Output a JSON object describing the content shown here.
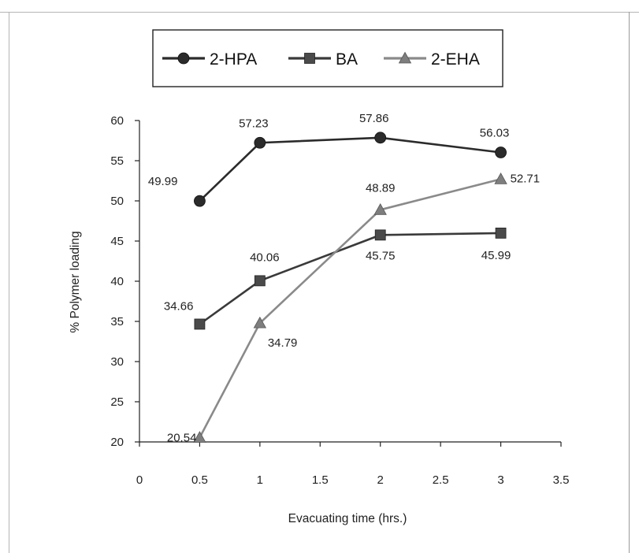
{
  "chart_data": {
    "type": "line",
    "title": "",
    "xlabel": "Evacuating time (hrs.)",
    "ylabel": "% Polymer loading",
    "xlim": [
      0,
      3.5
    ],
    "ylim": [
      20,
      60
    ],
    "x_ticks": [
      "0",
      "0.5",
      "1",
      "1.5",
      "2",
      "2.5",
      "3",
      "3.5"
    ],
    "y_ticks": [
      "20",
      "25",
      "30",
      "35",
      "40",
      "45",
      "50",
      "55",
      "60"
    ],
    "x": [
      0.5,
      1,
      2,
      3
    ],
    "grid": false,
    "legend_position": "top",
    "series": [
      {
        "name": "2-HPA",
        "values": [
          49.99,
          57.23,
          57.86,
          56.03
        ],
        "labels": [
          "49.99",
          "57.23",
          "57.86",
          "56.03"
        ],
        "marker": "circle",
        "color": "#2b2b2b",
        "line_color": "#2b2b2b"
      },
      {
        "name": "BA",
        "values": [
          34.66,
          40.06,
          45.75,
          45.99
        ],
        "labels": [
          "34.66",
          "40.06",
          "45.75",
          "45.99"
        ],
        "marker": "square",
        "color": "#4a4a4a",
        "line_color": "#3a3a3a"
      },
      {
        "name": "2-EHA",
        "values": [
          20.54,
          34.79,
          48.89,
          52.71
        ],
        "labels": [
          "20.54",
          "34.79",
          "48.89",
          "52.71"
        ],
        "marker": "triangle",
        "color": "#7e7e7e",
        "line_color": "#8a8a8a"
      }
    ]
  }
}
